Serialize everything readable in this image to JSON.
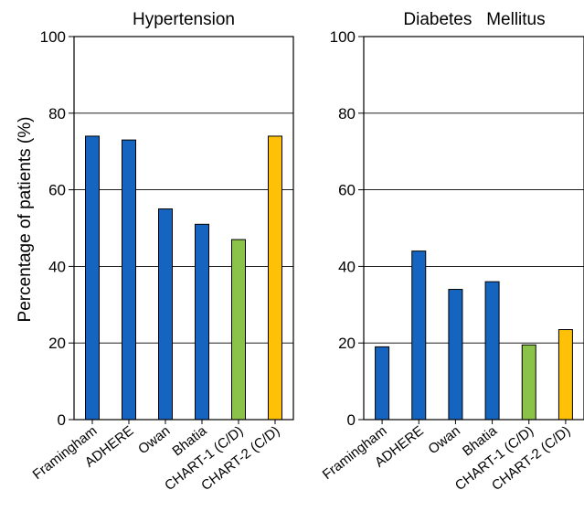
{
  "chart_data": [
    {
      "type": "bar",
      "title": "Hypertension",
      "ylabel": "Percentage of patients (%)",
      "xlabel": "",
      "categories": [
        "Framingham",
        "ADHERE",
        "Owan",
        "Bhatia",
        "CHART-1 (C/D)",
        "CHART-2 (C/D)"
      ],
      "values": [
        74,
        73,
        55,
        51,
        47,
        74
      ],
      "colors": [
        "#1565c0",
        "#1565c0",
        "#1565c0",
        "#1565c0",
        "#8bc34a",
        "#ffc107"
      ],
      "ylim": [
        0,
        100
      ],
      "yticks": [
        "0",
        "20",
        "40",
        "60",
        "80",
        "100"
      ],
      "grid": true
    },
    {
      "type": "bar",
      "title": "Diabetes   Mellitus",
      "ylabel": "",
      "xlabel": "",
      "categories": [
        "Framingham",
        "ADHERE",
        "Owan",
        "Bhatia",
        "CHART-1 (C/D)",
        "CHART-2 (C/D)"
      ],
      "values": [
        19,
        44,
        34,
        36,
        19.5,
        23.5
      ],
      "colors": [
        "#1565c0",
        "#1565c0",
        "#1565c0",
        "#1565c0",
        "#8bc34a",
        "#ffc107"
      ],
      "ylim": [
        0,
        100
      ],
      "yticks": [
        "0",
        "20",
        "40",
        "60",
        "80",
        "100"
      ],
      "grid": true
    }
  ]
}
